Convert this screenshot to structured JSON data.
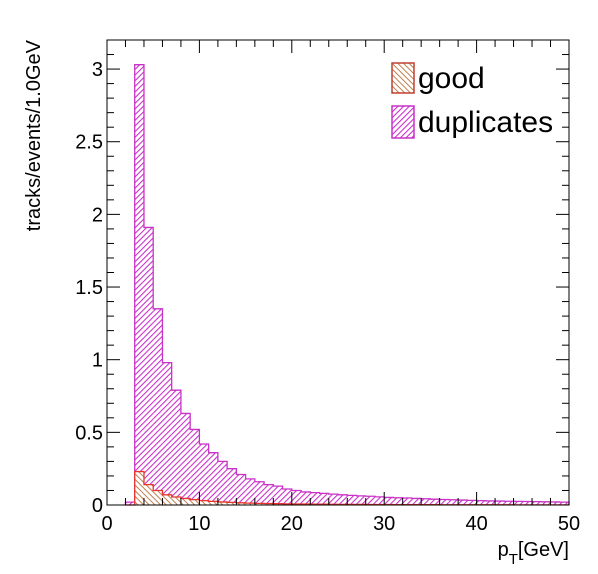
{
  "chart_data": {
    "type": "bar",
    "style": "overlaid-step-histogram",
    "xlabel": "p",
    "xlabel_sub": "T",
    "xlabel_unit": "[GeV]",
    "ylabel": "tracks/events/1.0GeV",
    "xlim": [
      0,
      50
    ],
    "ylim": [
      0,
      3.2
    ],
    "x_ticks": [
      0,
      10,
      20,
      30,
      40,
      50
    ],
    "x_tick_labels": [
      "0",
      "10",
      "20",
      "30",
      "40",
      "50"
    ],
    "y_ticks": [
      0,
      0.5,
      1,
      1.5,
      2,
      2.5,
      3
    ],
    "y_tick_labels": [
      "0",
      "0.5",
      "1",
      "1.5",
      "2",
      "2.5",
      "3"
    ],
    "bin_width": 1.0,
    "bin_edges_start": 2,
    "legend_position": "top-right",
    "series": [
      {
        "name": "duplicates",
        "color": "#c832c8",
        "fill": "hatched",
        "values": [
          0.02,
          3.03,
          1.91,
          1.35,
          0.98,
          0.79,
          0.63,
          0.52,
          0.42,
          0.36,
          0.3,
          0.25,
          0.21,
          0.18,
          0.16,
          0.14,
          0.13,
          0.11,
          0.1,
          0.09,
          0.085,
          0.08,
          0.075,
          0.07,
          0.066,
          0.063,
          0.06,
          0.056,
          0.052,
          0.05,
          0.048,
          0.045,
          0.043,
          0.04,
          0.038,
          0.036,
          0.034,
          0.032,
          0.03,
          0.028,
          0.027,
          0.026,
          0.025,
          0.024,
          0.023,
          0.022,
          0.021,
          0.02
        ]
      },
      {
        "name": "good",
        "color": "#e8342a",
        "fill": "hatched",
        "values": [
          0.0,
          0.23,
          0.14,
          0.1,
          0.07,
          0.055,
          0.045,
          0.037,
          0.03,
          0.025,
          0.021,
          0.018,
          0.015,
          0.013,
          0.011,
          0.01,
          0.009,
          0.008,
          0.007,
          0.0065,
          0.006,
          0.0055,
          0.005,
          0.0045,
          0.004,
          0.0038,
          0.0035,
          0.0032,
          0.003,
          0.0028,
          0.0026,
          0.0024,
          0.0022,
          0.002,
          0.0019,
          0.0018,
          0.0017,
          0.0016,
          0.0015,
          0.0014,
          0.0013,
          0.0012,
          0.0011,
          0.001,
          0.001,
          0.001,
          0.001,
          0.001
        ]
      }
    ],
    "legend": [
      {
        "label": "good",
        "swatch_color": "#c9a07a",
        "border_color": "#c04030"
      },
      {
        "label": "duplicates",
        "swatch_color": "#c86ac8",
        "border_color": "#c832c8"
      }
    ]
  }
}
